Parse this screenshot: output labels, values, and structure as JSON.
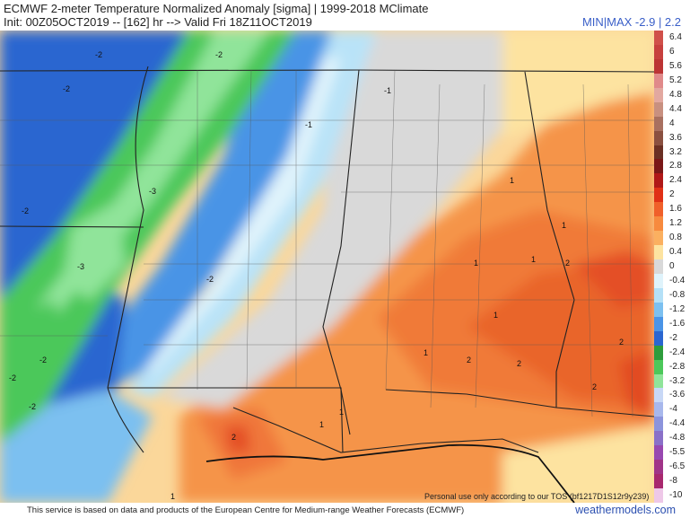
{
  "header": {
    "title_line1": "ECMWF 2-meter Temperature Normalized Anomaly [sigma] | 1999-2018 MClimate",
    "title_line2": "Init: 00Z05OCT2019 -- [162] hr --> Valid Fri 18Z11OCT2019",
    "minmax": "MIN|MAX -2.9 | 2.2"
  },
  "legend": {
    "items": [
      {
        "label": "6.4",
        "color": "#d0504a"
      },
      {
        "label": "6",
        "color": "#c7403e"
      },
      {
        "label": "5.6",
        "color": "#bc3434"
      },
      {
        "label": "5.2",
        "color": "#e08a8a"
      },
      {
        "label": "4.8",
        "color": "#e2a8a0"
      },
      {
        "label": "4.4",
        "color": "#c89080"
      },
      {
        "label": "4",
        "color": "#a87060"
      },
      {
        "label": "3.6",
        "color": "#8a5040"
      },
      {
        "label": "3.2",
        "color": "#6a3024"
      },
      {
        "label": "2.8",
        "color": "#7a1818"
      },
      {
        "label": "2.4",
        "color": "#b01818"
      },
      {
        "label": "2",
        "color": "#e03016"
      },
      {
        "label": "1.6",
        "color": "#f0602a"
      },
      {
        "label": "1.2",
        "color": "#f78a3e"
      },
      {
        "label": "0.8",
        "color": "#fbb060"
      },
      {
        "label": "0.4",
        "color": "#fde3a0"
      },
      {
        "label": "0",
        "color": "#d9d9d9"
      },
      {
        "label": "-0.4",
        "color": "#dff3fb"
      },
      {
        "label": "-0.8",
        "color": "#b4e0f7"
      },
      {
        "label": "-1.2",
        "color": "#7cc0f0"
      },
      {
        "label": "-1.6",
        "color": "#4a94e6"
      },
      {
        "label": "-2",
        "color": "#2a66d0"
      },
      {
        "label": "-2.4",
        "color": "#2e9c3c"
      },
      {
        "label": "-2.8",
        "color": "#4cc85a"
      },
      {
        "label": "-3.2",
        "color": "#90e49a"
      },
      {
        "label": "-3.6",
        "color": "#c8d8f6"
      },
      {
        "label": "-4",
        "color": "#a8b8ec"
      },
      {
        "label": "-4.4",
        "color": "#8c94dc"
      },
      {
        "label": "-4.8",
        "color": "#8a70c8"
      },
      {
        "label": "-5.5",
        "color": "#9848b0"
      },
      {
        "label": "-6.5",
        "color": "#a03488"
      },
      {
        "label": "-8",
        "color": "#a8286e"
      },
      {
        "label": "-10",
        "color": "#eec8e8"
      }
    ]
  },
  "map": {
    "labels": [
      "-2",
      "-2",
      "-2",
      "-2",
      "-1",
      "-1",
      "-3",
      "-3",
      "-2",
      "-2",
      "-2",
      "-2",
      "1",
      "1",
      "1",
      "1",
      "1",
      "2",
      "2",
      "2",
      "2",
      "2",
      "1",
      "1",
      "1",
      "2",
      "1"
    ]
  },
  "disclaimer": "Personal use only according to our TOS (bf1217D1S12r9y239)",
  "footer": {
    "text": "This service is based on data and products of the European Centre for Medium-range Weather Forecasts (ECMWF)",
    "site": "weathermodels.com"
  }
}
